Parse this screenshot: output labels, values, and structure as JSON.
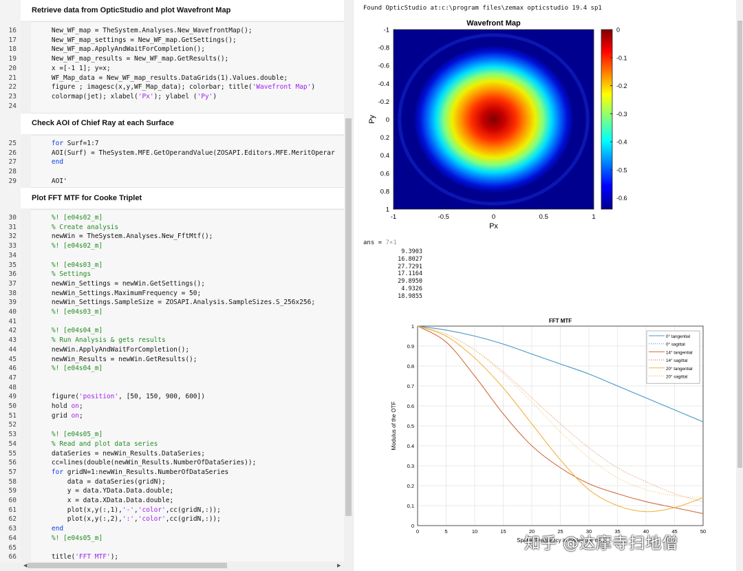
{
  "editor": {
    "sections": [
      {
        "title": "Retrieve data from OpticStudio and plot Wavefront Map"
      },
      {
        "title": "Check AOI of Chief Ray at each Surface"
      },
      {
        "title": "Plot FFT MTF for Cooke Triplet"
      }
    ],
    "code_lines": [
      {
        "n": "16",
        "t": [
          [
            "    New_WF_map = TheSystem.Analyses.New_WavefrontMap();",
            ""
          ]
        ]
      },
      {
        "n": "17",
        "t": [
          [
            "    New_WF_map_settings = New_WF_map.GetSettings();",
            ""
          ]
        ]
      },
      {
        "n": "18",
        "t": [
          [
            "    New_WF_map.ApplyAndWaitForCompletion();",
            ""
          ]
        ]
      },
      {
        "n": "19",
        "t": [
          [
            "    New_WF_map_results = New_WF_map.GetResults();",
            ""
          ]
        ]
      },
      {
        "n": "20",
        "t": [
          [
            "    x =[-1 1]; y=x;",
            ""
          ]
        ]
      },
      {
        "n": "21",
        "t": [
          [
            "    WF_Map_data = New_WF_map_results.DataGrids(1).Values.double;",
            ""
          ]
        ]
      },
      {
        "n": "22",
        "t": [
          [
            "    figure ; imagesc(x,y,WF_Map_data); colorbar; title(",
            ""
          ],
          [
            "'Wavefront Map'",
            "st"
          ],
          [
            ")",
            ""
          ]
        ]
      },
      {
        "n": "23",
        "t": [
          [
            "    colormap(jet); xlabel(",
            ""
          ],
          [
            "'Px'",
            "st"
          ],
          [
            "); ylabel (",
            ""
          ],
          [
            "'Py'",
            "st"
          ],
          [
            ")",
            ""
          ]
        ]
      },
      {
        "n": "24",
        "t": []
      },
      {
        "n": "25",
        "t": [
          [
            "    ",
            ""
          ],
          [
            "for",
            "kw"
          ],
          [
            " Surf=1:7",
            ""
          ]
        ]
      },
      {
        "n": "26",
        "t": [
          [
            "    AOI(Surf) = TheSystem.MFE.GetOperandValue(ZOSAPI.Editors.MFE.MeritOperar",
            ""
          ]
        ]
      },
      {
        "n": "27",
        "t": [
          [
            "    ",
            ""
          ],
          [
            "end",
            "kw"
          ]
        ]
      },
      {
        "n": "28",
        "t": []
      },
      {
        "n": "29",
        "t": [
          [
            "    AOI'",
            ""
          ]
        ]
      },
      {
        "n": "30",
        "t": [
          [
            "    %! [e04s02_m]",
            "cm"
          ]
        ]
      },
      {
        "n": "31",
        "t": [
          [
            "    % Create analysis",
            "cm"
          ]
        ]
      },
      {
        "n": "32",
        "t": [
          [
            "    newWin = TheSystem.Analyses.New_FftMtf();",
            ""
          ]
        ]
      },
      {
        "n": "33",
        "t": [
          [
            "    %! [e04s02_m]",
            "cm"
          ]
        ]
      },
      {
        "n": "34",
        "t": []
      },
      {
        "n": "35",
        "t": [
          [
            "    %! [e04s03_m]",
            "cm"
          ]
        ]
      },
      {
        "n": "36",
        "t": [
          [
            "    % Settings",
            "cm"
          ]
        ]
      },
      {
        "n": "37",
        "t": [
          [
            "    newWin_Settings = newWin.GetSettings();",
            ""
          ]
        ]
      },
      {
        "n": "38",
        "t": [
          [
            "    newWin_Settings.MaximumFrequency = 50;",
            ""
          ]
        ]
      },
      {
        "n": "39",
        "t": [
          [
            "    newWin_Settings.SampleSize = ZOSAPI.Analysis.SampleSizes.S_256x256;",
            ""
          ]
        ]
      },
      {
        "n": "40",
        "t": [
          [
            "    %! [e04s03_m]",
            "cm"
          ]
        ]
      },
      {
        "n": "41",
        "t": []
      },
      {
        "n": "42",
        "t": [
          [
            "    %! [e04s04_m]",
            "cm"
          ]
        ]
      },
      {
        "n": "43",
        "t": [
          [
            "    % Run Analysis & gets results",
            "cm"
          ]
        ]
      },
      {
        "n": "44",
        "t": [
          [
            "    newWin.ApplyAndWaitForCompletion();",
            ""
          ]
        ]
      },
      {
        "n": "45",
        "t": [
          [
            "    newWin_Results = newWin.GetResults();",
            ""
          ]
        ]
      },
      {
        "n": "46",
        "t": [
          [
            "    %! [e04s04_m]",
            "cm"
          ]
        ]
      },
      {
        "n": "47",
        "t": []
      },
      {
        "n": "48",
        "t": []
      },
      {
        "n": "49",
        "t": [
          [
            "    figure(",
            ""
          ],
          [
            "'position'",
            "st"
          ],
          [
            ", [50, 150, 900, 600])",
            ""
          ]
        ]
      },
      {
        "n": "50",
        "t": [
          [
            "    hold ",
            ""
          ],
          [
            "on",
            "st"
          ],
          [
            ";",
            ""
          ]
        ]
      },
      {
        "n": "51",
        "t": [
          [
            "    grid ",
            ""
          ],
          [
            "on",
            "st"
          ],
          [
            ";",
            ""
          ]
        ]
      },
      {
        "n": "52",
        "t": []
      },
      {
        "n": "53",
        "t": [
          [
            "    %! [e04s05_m]",
            "cm"
          ]
        ]
      },
      {
        "n": "54",
        "t": [
          [
            "    % Read and plot data series",
            "cm"
          ]
        ]
      },
      {
        "n": "55",
        "t": [
          [
            "    dataSeries = newWin_Results.DataSeries;",
            ""
          ]
        ]
      },
      {
        "n": "56",
        "t": [
          [
            "    cc=lines(double(newWin_Results.NumberOfDataSeries));",
            ""
          ]
        ]
      },
      {
        "n": "57",
        "t": [
          [
            "    ",
            ""
          ],
          [
            "for",
            "kw"
          ],
          [
            " gridN=1:newWin_Results.NumberOfDataSeries",
            ""
          ]
        ]
      },
      {
        "n": "58",
        "t": [
          [
            "        data = dataSeries(gridN);",
            ""
          ]
        ]
      },
      {
        "n": "59",
        "t": [
          [
            "        y = data.YData.Data.double;",
            ""
          ]
        ]
      },
      {
        "n": "60",
        "t": [
          [
            "        x = data.XData.Data.double;",
            ""
          ]
        ]
      },
      {
        "n": "61",
        "t": [
          [
            "        plot(x,y(:,1),",
            ""
          ],
          [
            "'-'",
            "st"
          ],
          [
            ",",
            ""
          ],
          [
            "'color'",
            "st"
          ],
          [
            ",cc(gridN,:));",
            ""
          ]
        ]
      },
      {
        "n": "62",
        "t": [
          [
            "        plot(x,y(:,2),",
            ""
          ],
          [
            "':'",
            "st"
          ],
          [
            ",",
            ""
          ],
          [
            "'color'",
            "st"
          ],
          [
            ",cc(gridN,:));",
            ""
          ]
        ]
      },
      {
        "n": "63",
        "t": [
          [
            "    ",
            ""
          ],
          [
            "end",
            "kw"
          ]
        ]
      },
      {
        "n": "64",
        "t": [
          [
            "    %! [e04s05_m]",
            "cm"
          ]
        ]
      },
      {
        "n": "65",
        "t": []
      },
      {
        "n": "66",
        "t": [
          [
            "    title(",
            ""
          ],
          [
            "'FFT MTF'",
            "st"
          ],
          [
            ");",
            ""
          ]
        ]
      }
    ]
  },
  "output": {
    "found_text": "Found OpticStudio at:c:\\program files\\zemax opticstudio 19.4 sp1",
    "ans_label": "ans = ",
    "ans_dims": "7×1",
    "ans_values": [
      "9.3903",
      "16.8027",
      "27.7291",
      "17.1164",
      "29.8950",
      "4.9326",
      "18.9855"
    ],
    "watermark": "知乎 @达摩寺扫地僧"
  },
  "colors": {
    "tangential0": "#4a97c9",
    "tangential14": "#d26a3e",
    "tangential20": "#f0b43c"
  },
  "chart_data": [
    {
      "type": "heatmap",
      "title": "Wavefront Map",
      "xlabel": "Px",
      "ylabel": "Py",
      "xlim": [
        -1,
        1
      ],
      "ylim": [
        -1,
        1
      ],
      "xticks": [
        "-1",
        "-0.5",
        "0",
        "0.5",
        "1"
      ],
      "yticks": [
        "-1",
        "-0.8",
        "-0.6",
        "-0.4",
        "-0.2",
        "0",
        "0.2",
        "0.4",
        "0.6",
        "0.8",
        "1"
      ],
      "colormap": "jet",
      "colorbar_ticks": [
        "0",
        "-0.1",
        "-0.2",
        "-0.3",
        "-0.4",
        "-0.5",
        "-0.6"
      ],
      "clim": [
        -0.64,
        0
      ],
      "center_value": 0,
      "edge_value": -0.64
    },
    {
      "type": "line",
      "title": "FFT MTF",
      "xlabel": "Spatial Frequency in cycles per mm",
      "ylabel": "Modulus of the OTF",
      "xlim": [
        0,
        50
      ],
      "ylim": [
        0,
        1
      ],
      "xticks": [
        "0",
        "5",
        "10",
        "15",
        "20",
        "25",
        "30",
        "35",
        "40",
        "45",
        "50"
      ],
      "yticks": [
        "0",
        "0.1",
        "0.2",
        "0.3",
        "0.4",
        "0.5",
        "0.6",
        "0.7",
        "0.8",
        "0.9",
        "1"
      ],
      "grid": true,
      "legend_position": "top-right",
      "series": [
        {
          "name": "0° tangential",
          "style": "solid",
          "color": "#4a97c9",
          "x": [
            0,
            5,
            10,
            15,
            20,
            25,
            30,
            35,
            40,
            45,
            50
          ],
          "values": [
            1,
            0.98,
            0.95,
            0.91,
            0.86,
            0.81,
            0.76,
            0.7,
            0.64,
            0.58,
            0.52
          ]
        },
        {
          "name": "0° sagittal",
          "style": "dotted",
          "color": "#4a97c9",
          "x": [
            0,
            5,
            10,
            15,
            20,
            25,
            30,
            35,
            40,
            45,
            50
          ],
          "values": [
            1,
            0.98,
            0.95,
            0.91,
            0.86,
            0.81,
            0.76,
            0.7,
            0.64,
            0.58,
            0.52
          ]
        },
        {
          "name": "14° tangential",
          "style": "solid",
          "color": "#d26a3e",
          "x": [
            0,
            5,
            10,
            15,
            20,
            25,
            30,
            35,
            40,
            45,
            50
          ],
          "values": [
            1,
            0.92,
            0.75,
            0.56,
            0.4,
            0.29,
            0.21,
            0.16,
            0.12,
            0.09,
            0.06
          ]
        },
        {
          "name": "14° sagittal",
          "style": "dotted",
          "color": "#d26a3e",
          "x": [
            0,
            5,
            10,
            15,
            20,
            25,
            30,
            35,
            40,
            45,
            50
          ],
          "values": [
            1,
            0.96,
            0.88,
            0.77,
            0.64,
            0.51,
            0.39,
            0.29,
            0.22,
            0.16,
            0.12
          ]
        },
        {
          "name": "20° tangential",
          "style": "solid",
          "color": "#f0b43c",
          "x": [
            0,
            5,
            10,
            15,
            20,
            25,
            30,
            35,
            40,
            45,
            50
          ],
          "values": [
            1,
            0.95,
            0.84,
            0.69,
            0.51,
            0.33,
            0.18,
            0.1,
            0.07,
            0.09,
            0.14
          ]
        },
        {
          "name": "20° sagittal",
          "style": "dotted",
          "color": "#f0b43c",
          "x": [
            0,
            5,
            10,
            15,
            20,
            25,
            30,
            35,
            40,
            45,
            50
          ],
          "values": [
            1,
            0.96,
            0.88,
            0.76,
            0.62,
            0.47,
            0.34,
            0.24,
            0.18,
            0.15,
            0.14
          ]
        }
      ]
    }
  ]
}
